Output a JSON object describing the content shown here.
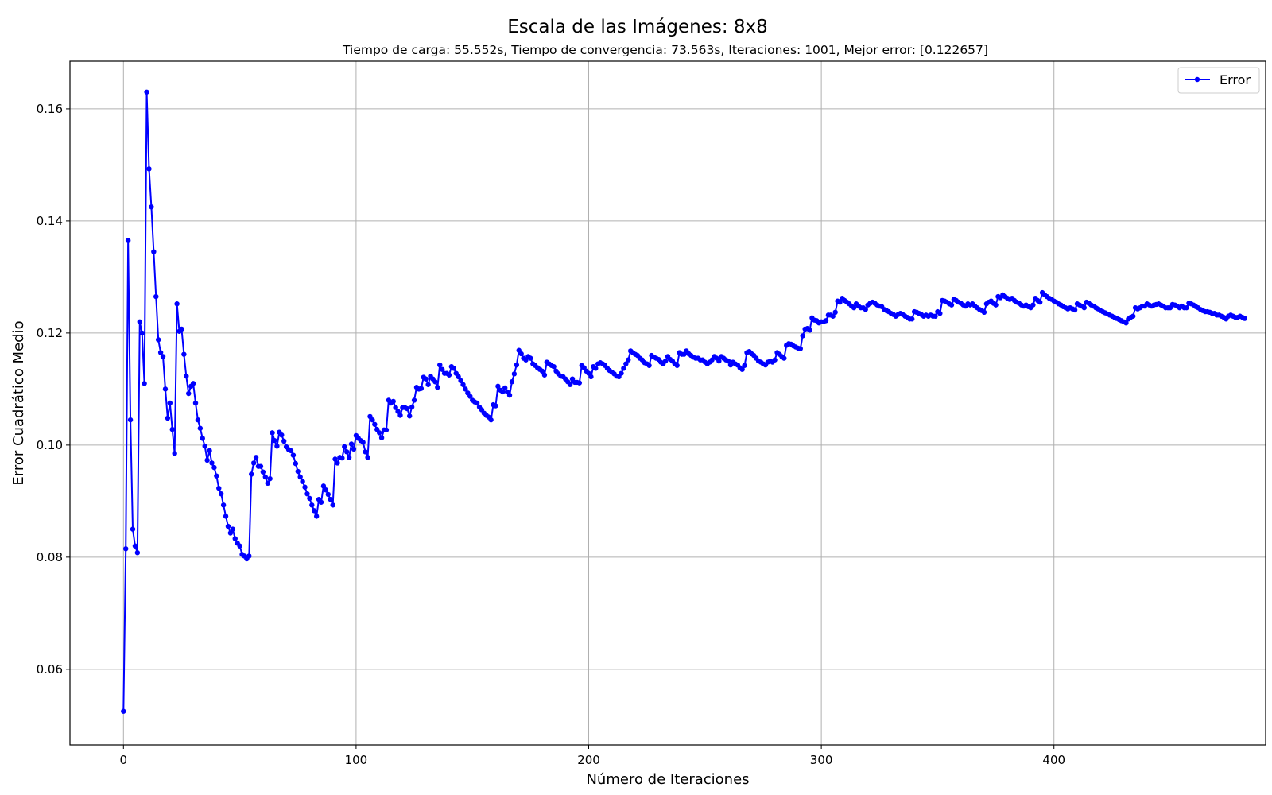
{
  "chart_data": {
    "type": "line",
    "title": "Escala de las Imágenes: 8x8",
    "subtitle": "Tiempo de carga: 55.552s, Tiempo de convergencia: 73.563s, Iteraciones: 1001, Mejor error: [0.122657]",
    "xlabel": "Número de Iteraciones",
    "ylabel": "Error Cuadrático Medio",
    "xlim": [
      -23,
      491
    ],
    "ylim": [
      0.0465,
      0.1685
    ],
    "xticks": [
      0,
      100,
      200,
      300,
      400
    ],
    "xtick_labels": [
      "0",
      "100",
      "200",
      "300",
      "400"
    ],
    "yticks": [
      0.06,
      0.08,
      0.1,
      0.12,
      0.14,
      0.16
    ],
    "ytick_labels": [
      "0.06",
      "0.08",
      "0.10",
      "0.12",
      "0.14",
      "0.16"
    ],
    "grid": true,
    "legend_position": "top-right",
    "colors": {
      "series": "#0000ff",
      "grid": "#b0b0b0",
      "axis": "#000000"
    },
    "series": [
      {
        "name": "Error",
        "marker": "circle",
        "x_start": 0,
        "x_step": 1,
        "values": [
          0.0525,
          0.0815,
          0.1365,
          0.1045,
          0.085,
          0.082,
          0.0808,
          0.122,
          0.12,
          0.111,
          0.163,
          0.1493,
          0.1425,
          0.1345,
          0.1265,
          0.1188,
          0.1165,
          0.1158,
          0.11,
          0.1048,
          0.1075,
          0.1028,
          0.0985,
          0.1252,
          0.1203,
          0.1207,
          0.1162,
          0.1123,
          0.1092,
          0.1105,
          0.111,
          0.1075,
          0.1045,
          0.103,
          0.1012,
          0.0998,
          0.0973,
          0.099,
          0.0968,
          0.096,
          0.0945,
          0.0923,
          0.0913,
          0.0893,
          0.0873,
          0.0855,
          0.0843,
          0.085,
          0.0833,
          0.0825,
          0.082,
          0.0805,
          0.0802,
          0.0797,
          0.0802,
          0.0948,
          0.0968,
          0.0978,
          0.0962,
          0.0962,
          0.0952,
          0.0943,
          0.0932,
          0.094,
          0.1022,
          0.1008,
          0.0998,
          0.1023,
          0.1018,
          0.1007,
          0.0997,
          0.0992,
          0.099,
          0.0982,
          0.0967,
          0.0953,
          0.0943,
          0.0935,
          0.0925,
          0.0913,
          0.0905,
          0.0893,
          0.0883,
          0.0873,
          0.0903,
          0.0898,
          0.0927,
          0.092,
          0.0912,
          0.0903,
          0.0893,
          0.0975,
          0.0968,
          0.0978,
          0.0977,
          0.0997,
          0.0988,
          0.0978,
          0.1002,
          0.0993,
          0.1017,
          0.1012,
          0.1008,
          0.1005,
          0.0988,
          0.0978,
          0.1051,
          0.1045,
          0.1037,
          0.1028,
          0.1022,
          0.1013,
          0.1027,
          0.1027,
          0.108,
          0.1075,
          0.1078,
          0.1067,
          0.106,
          0.1053,
          0.1067,
          0.1067,
          0.1065,
          0.1052,
          0.1068,
          0.108,
          0.1103,
          0.11,
          0.1101,
          0.1121,
          0.1118,
          0.1108,
          0.1123,
          0.1118,
          0.1113,
          0.1103,
          0.1143,
          0.1135,
          0.1128,
          0.1128,
          0.1125,
          0.114,
          0.1137,
          0.1128,
          0.1122,
          0.1115,
          0.1108,
          0.11,
          0.1093,
          0.1087,
          0.108,
          0.1077,
          0.1075,
          0.1068,
          0.1063,
          0.1057,
          0.1053,
          0.105,
          0.1045,
          0.1072,
          0.107,
          0.1105,
          0.1098,
          0.1095,
          0.1102,
          0.1095,
          0.1089,
          0.1113,
          0.1127,
          0.1143,
          0.1169,
          0.1163,
          0.1155,
          0.1152,
          0.1158,
          0.1155,
          0.1145,
          0.1142,
          0.1138,
          0.1135,
          0.1132,
          0.1125,
          0.1148,
          0.1145,
          0.1142,
          0.114,
          0.1132,
          0.1127,
          0.1123,
          0.1122,
          0.1118,
          0.1113,
          0.1108,
          0.1118,
          0.1112,
          0.1112,
          0.1111,
          0.1142,
          0.1138,
          0.1132,
          0.1128,
          0.1122,
          0.114,
          0.1137,
          0.1145,
          0.1147,
          0.1145,
          0.1142,
          0.1137,
          0.1133,
          0.113,
          0.1127,
          0.1123,
          0.1122,
          0.1128,
          0.1137,
          0.1145,
          0.1152,
          0.1168,
          0.1165,
          0.1162,
          0.116,
          0.1155,
          0.1152,
          0.1147,
          0.1145,
          0.1142,
          0.116,
          0.1157,
          0.1155,
          0.1153,
          0.1148,
          0.1145,
          0.115,
          0.1158,
          0.1153,
          0.115,
          0.1145,
          0.1142,
          0.1165,
          0.1162,
          0.1162,
          0.1168,
          0.1163,
          0.116,
          0.1157,
          0.1155,
          0.1155,
          0.1152,
          0.1152,
          0.1148,
          0.1145,
          0.1148,
          0.1152,
          0.1158,
          0.1155,
          0.115,
          0.1158,
          0.1155,
          0.1152,
          0.115,
          0.1143,
          0.1148,
          0.1145,
          0.1143,
          0.1138,
          0.1135,
          0.1142,
          0.1165,
          0.1167,
          0.1163,
          0.116,
          0.1155,
          0.115,
          0.1148,
          0.1145,
          0.1143,
          0.1148,
          0.115,
          0.1148,
          0.1152,
          0.1165,
          0.1162,
          0.1158,
          0.1155,
          0.1178,
          0.1181,
          0.118,
          0.1177,
          0.1175,
          0.1173,
          0.1172,
          0.1195,
          0.1207,
          0.1208,
          0.1205,
          0.1227,
          0.1223,
          0.1222,
          0.1218,
          0.122,
          0.122,
          0.1222,
          0.1232,
          0.1232,
          0.123,
          0.1237,
          0.1257,
          0.1255,
          0.1262,
          0.1258,
          0.1255,
          0.1252,
          0.1248,
          0.1245,
          0.1252,
          0.1248,
          0.1245,
          0.1245,
          0.1242,
          0.125,
          0.1253,
          0.1255,
          0.1253,
          0.125,
          0.1248,
          0.1247,
          0.1242,
          0.124,
          0.1238,
          0.1235,
          0.1233,
          0.123,
          0.1233,
          0.1235,
          0.1233,
          0.123,
          0.1228,
          0.1225,
          0.1225,
          0.1238,
          0.1237,
          0.1235,
          0.1233,
          0.123,
          0.1232,
          0.123,
          0.1232,
          0.123,
          0.123,
          0.1238,
          0.1235,
          0.1258,
          0.1257,
          0.1255,
          0.1252,
          0.125,
          0.126,
          0.1258,
          0.1255,
          0.1253,
          0.125,
          0.1248,
          0.1252,
          0.125,
          0.1252,
          0.1248,
          0.1245,
          0.1242,
          0.124,
          0.1237,
          0.1252,
          0.1255,
          0.1257,
          0.1253,
          0.125,
          0.1265,
          0.1263,
          0.1268,
          0.1265,
          0.1262,
          0.126,
          0.1262,
          0.1258,
          0.1255,
          0.1253,
          0.125,
          0.1248,
          0.125,
          0.1247,
          0.1245,
          0.125,
          0.1262,
          0.1258,
          0.1255,
          0.1272,
          0.1268,
          0.1265,
          0.1262,
          0.126,
          0.1257,
          0.1255,
          0.1252,
          0.125,
          0.1247,
          0.1245,
          0.1243,
          0.1245,
          0.1243,
          0.1241,
          0.1252,
          0.125,
          0.1248,
          0.1245,
          0.1255,
          0.1253,
          0.125,
          0.1248,
          0.1245,
          0.1243,
          0.124,
          0.1238,
          0.1236,
          0.1234,
          0.1232,
          0.123,
          0.1228,
          0.1226,
          0.1224,
          0.1222,
          0.122,
          0.1218,
          0.1225,
          0.1228,
          0.123,
          0.1245,
          0.1243,
          0.1245,
          0.1248,
          0.1248,
          0.1252,
          0.125,
          0.1248,
          0.125,
          0.1251,
          0.1252,
          0.125,
          0.1248,
          0.1245,
          0.1245,
          0.1245,
          0.1251,
          0.125,
          0.1248,
          0.1245,
          0.1248,
          0.1245,
          0.1245,
          0.1253,
          0.1252,
          0.125,
          0.1247,
          0.1245,
          0.1242,
          0.124,
          0.1238,
          0.1238,
          0.1237,
          0.1235,
          0.1235,
          0.1232,
          0.1232,
          0.123,
          0.1228,
          0.1225,
          0.123,
          0.1232,
          0.123,
          0.1228,
          0.1228,
          0.123,
          0.1228,
          0.1226
        ]
      }
    ]
  }
}
